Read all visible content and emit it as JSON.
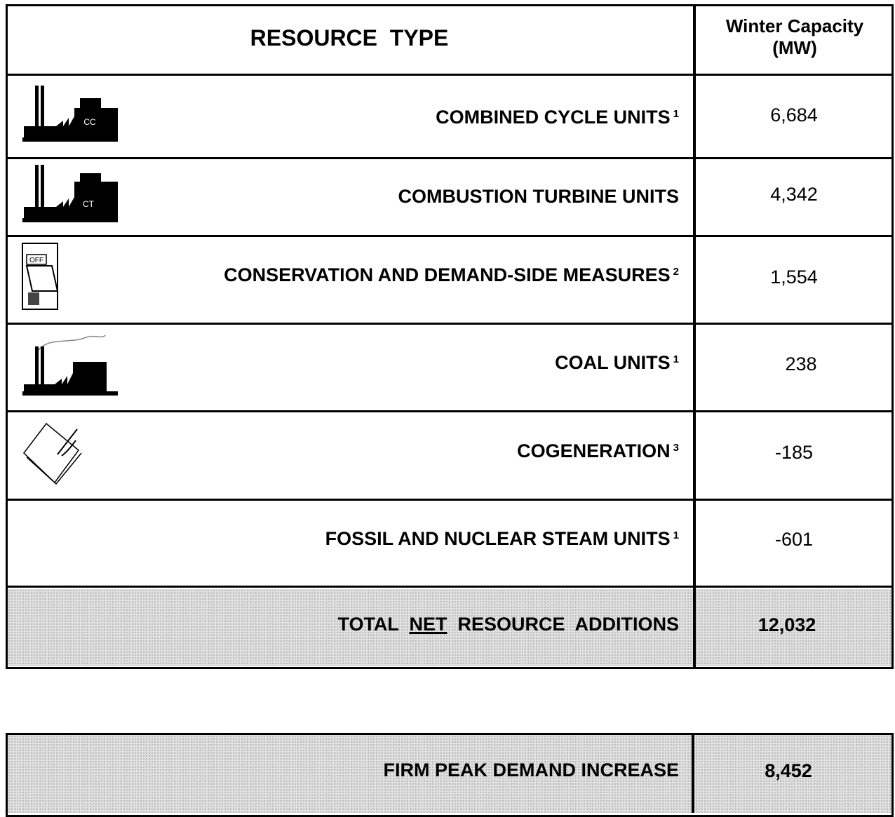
{
  "header": {
    "resource_type": "RESOURCE  TYPE",
    "capacity_line1": "Winter Capacity",
    "capacity_line2": "(MW)"
  },
  "rows": [
    {
      "label": "COMBINED CYCLE UNITS",
      "note": "1",
      "value": "6,684",
      "icon_label": "CC"
    },
    {
      "label": "COMBUSTION TURBINE UNITS",
      "value": "4,342",
      "icon_label": "CT"
    },
    {
      "label": "CONSERVATION AND DEMAND-SIDE MEASURES",
      "note": "2",
      "value": "1,554",
      "icon_label": "OFF"
    },
    {
      "label": "COAL UNITS",
      "note": "1",
      "value": "238"
    },
    {
      "label": "COGENERATION",
      "note": "3",
      "value": "-185"
    },
    {
      "label": "FOSSIL AND NUCLEAR STEAM UNITS",
      "note": "1",
      "value": "-601"
    }
  ],
  "total": {
    "prefix": "TOTAL",
    "emphasis": "NET",
    "suffix": "RESOURCE  ADDITIONS",
    "value": "12,032"
  },
  "demand": {
    "label": "FIRM PEAK DEMAND INCREASE",
    "value": "8,452"
  }
}
